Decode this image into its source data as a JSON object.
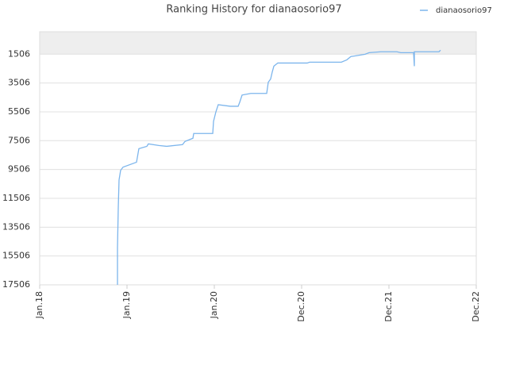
{
  "chart_data": {
    "type": "line",
    "title": "Ranking History for dianaosorio97",
    "y_inverted": true,
    "grid": true,
    "legend": "top-right",
    "xlim": [
      0,
      5
    ],
    "xticks": [
      {
        "value": 0,
        "label": "Jan.18"
      },
      {
        "value": 1,
        "label": "Jan.19"
      },
      {
        "value": 2,
        "label": "Jan.20"
      },
      {
        "value": 3,
        "label": "Dec.20"
      },
      {
        "value": 4,
        "label": "Dec.21"
      },
      {
        "value": 5,
        "label": "Dec.22"
      }
    ],
    "ylim": [
      -50,
      17506
    ],
    "yticks": [
      1506,
      3506,
      5506,
      7506,
      9506,
      11506,
      13506,
      15506,
      17506
    ],
    "series": [
      {
        "name": "dianaosorio97",
        "color": "#7cb5ec",
        "x": [
          0.891,
          0.891,
          0.9,
          0.909,
          0.927,
          0.955,
          1.109,
          1.136,
          1.227,
          1.245,
          1.364,
          1.455,
          1.636,
          1.664,
          1.755,
          1.764,
          1.982,
          1.991,
          2.018,
          2.045,
          2.182,
          2.273,
          2.291,
          2.318,
          2.418,
          2.6,
          2.618,
          2.645,
          2.664,
          2.682,
          2.727,
          3.064,
          3.091,
          3.455,
          3.518,
          3.564,
          3.618,
          3.727,
          3.773,
          3.909,
          4.091,
          4.136,
          4.282,
          4.291,
          4.291,
          4.573,
          4.591
        ],
        "values": [
          17506,
          14950,
          12170,
          10230,
          9560,
          9340,
          9000,
          8060,
          7900,
          7730,
          7840,
          7900,
          7780,
          7560,
          7340,
          7010,
          7010,
          6170,
          5510,
          5010,
          5120,
          5120,
          4840,
          4340,
          4230,
          4230,
          3450,
          3230,
          2730,
          2340,
          2120,
          2120,
          2060,
          2060,
          1900,
          1670,
          1620,
          1510,
          1400,
          1340,
          1340,
          1400,
          1400,
          2340,
          1340,
          1340,
          1230
        ]
      }
    ]
  }
}
